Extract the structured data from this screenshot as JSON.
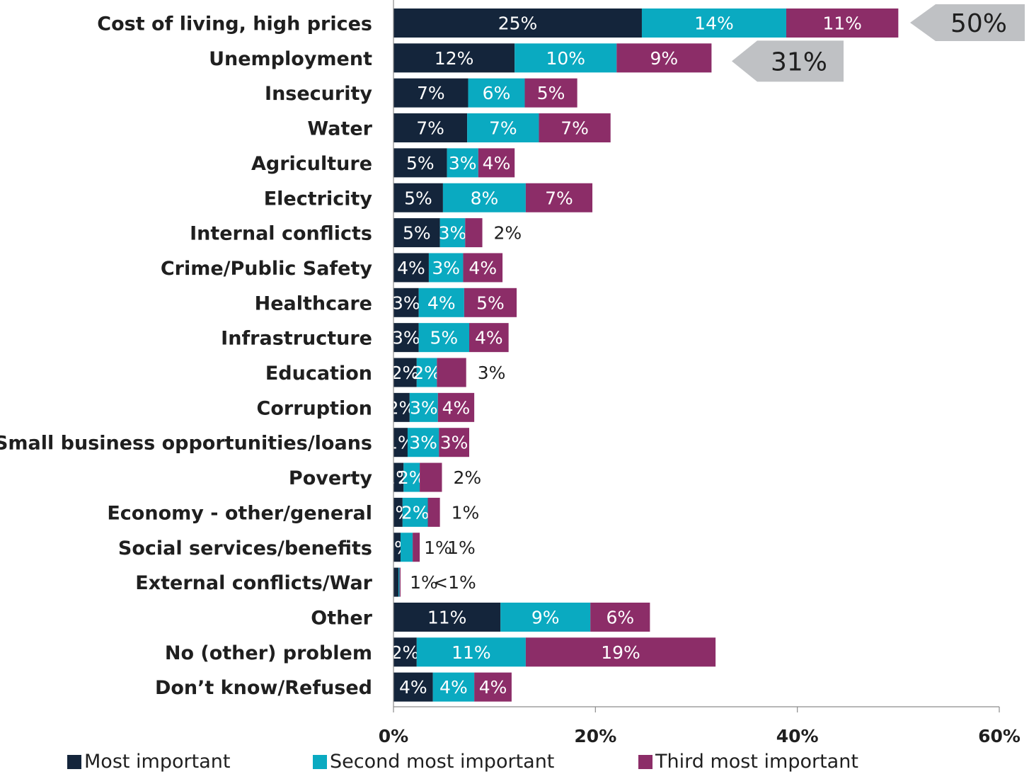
{
  "chart_data": {
    "type": "bar",
    "orientation": "horizontal",
    "stacked": true,
    "categories": [
      "Cost of living, high prices",
      "Unemployment",
      "Insecurity",
      "Water",
      "Agriculture",
      "Electricity",
      "Internal conflicts",
      "Crime/Public Safety",
      "Healthcare",
      "Infrastructure",
      "Education",
      "Corruption",
      "Small business opportunities/loans",
      "Poverty",
      "Economy - other/general",
      "Social services/benefits",
      "External conflicts/War",
      "Other",
      "No (other) problem",
      "Don’t know/Refused"
    ],
    "series": [
      {
        "name": "Most important",
        "color": "#14253b",
        "values": [
          24.6,
          12.0,
          7.4,
          7.3,
          5.3,
          4.9,
          4.6,
          3.5,
          2.5,
          2.5,
          2.3,
          1.6,
          1.4,
          1.0,
          0.9,
          0.7,
          0.5,
          10.6,
          2.3,
          3.9
        ],
        "labels": [
          "25%",
          "12%",
          "7%",
          "7%",
          "5%",
          "5%",
          "5%",
          "4%",
          "3%",
          "3%",
          "2%",
          "2%",
          "1%",
          "1%",
          "1%",
          "1%",
          "1%",
          "11%",
          "2%",
          "4%"
        ]
      },
      {
        "name": "Second most important",
        "color": "#0aaac1",
        "values": [
          14.3,
          10.1,
          5.6,
          7.1,
          3.1,
          8.2,
          2.5,
          3.4,
          4.5,
          5.0,
          2.0,
          2.8,
          3.1,
          1.6,
          2.5,
          1.2,
          0.1,
          8.9,
          10.8,
          4.1
        ],
        "labels": [
          "14%",
          "10%",
          "6%",
          "7%",
          "3%",
          "8%",
          "3%",
          "3%",
          "4%",
          "5%",
          "2%",
          "3%",
          "3%",
          "2%",
          "2%",
          "1%",
          "",
          "9%",
          "11%",
          "4%"
        ]
      },
      {
        "name": "Third most important",
        "color": "#8c2d68",
        "values": [
          11.1,
          9.4,
          5.2,
          7.1,
          3.6,
          6.6,
          1.7,
          3.9,
          5.2,
          3.9,
          2.9,
          3.6,
          3.0,
          2.2,
          1.2,
          0.7,
          0.1,
          5.9,
          18.8,
          3.7
        ],
        "labels": [
          "11%",
          "9%",
          "5%",
          "7%",
          "4%",
          "7%",
          "2%",
          "4%",
          "5%",
          "4%",
          "3%",
          "4%",
          "3%",
          "2%",
          "1%",
          "1%",
          "<1%",
          "6%",
          "19%",
          "4%"
        ]
      }
    ],
    "outside_labels": [
      {
        "category_index": 6,
        "series_index": 2
      },
      {
        "category_index": 10,
        "series_index": 2
      },
      {
        "category_index": 13,
        "series_index": 2
      },
      {
        "category_index": 14,
        "series_index": 2
      },
      {
        "category_index": 15,
        "series_index": 1
      },
      {
        "category_index": 15,
        "series_index": 2
      },
      {
        "category_index": 16,
        "series_index": 0
      },
      {
        "category_index": 16,
        "series_index": 2
      }
    ],
    "totals": [
      {
        "category_index": 0,
        "label": "50%"
      },
      {
        "category_index": 1,
        "label": "31%"
      }
    ],
    "xlim": [
      0,
      60
    ],
    "xticks": [
      0,
      20,
      40,
      60
    ],
    "xtick_labels": [
      "0%",
      "20%",
      "40%",
      "60%"
    ],
    "grid": false,
    "legend_position": "bottom",
    "callout_color": "#bfc1c4"
  }
}
